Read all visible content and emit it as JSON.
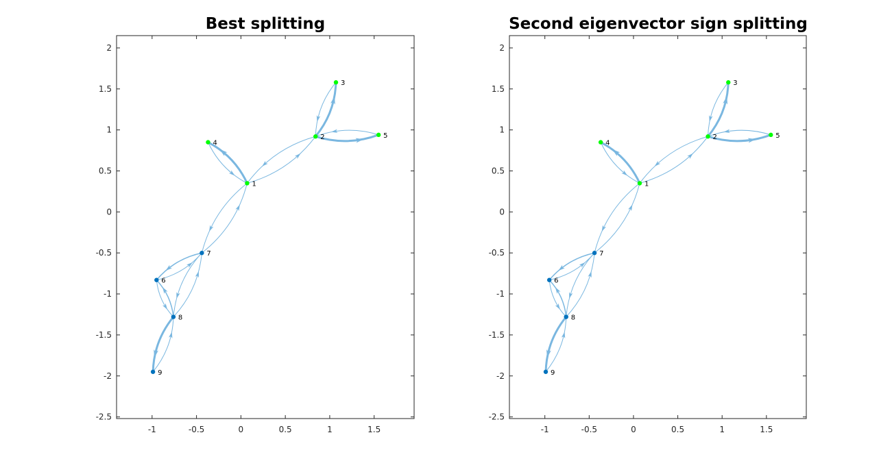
{
  "figure": {
    "background": "#ffffff"
  },
  "chart_data": [
    {
      "type": "graph",
      "title": "Best splitting",
      "xlim": [
        -1.4,
        1.95
      ],
      "ylim": [
        -2.52,
        2.15
      ],
      "xticks": [
        -1,
        -0.5,
        0,
        0.5,
        1,
        1.5
      ],
      "xtick_labels": [
        "-1",
        "-0.5",
        "0",
        "0.5",
        "1",
        "1.5"
      ],
      "yticks": [
        2,
        1.5,
        1,
        0.5,
        0,
        -0.5,
        -1,
        -1.5,
        -2,
        -2.5
      ],
      "ytick_labels": [
        "2",
        "1.5",
        "1",
        "0.5",
        "0",
        "-0.5",
        "-1",
        "-1.5",
        "-2",
        "-2.5"
      ],
      "grid": false,
      "nodes": [
        {
          "id": "1",
          "x": 0.07,
          "y": 0.35,
          "group": "green"
        },
        {
          "id": "2",
          "x": 0.84,
          "y": 0.92,
          "group": "green"
        },
        {
          "id": "3",
          "x": 1.07,
          "y": 1.58,
          "group": "green"
        },
        {
          "id": "4",
          "x": -0.37,
          "y": 0.85,
          "group": "green"
        },
        {
          "id": "5",
          "x": 1.55,
          "y": 0.94,
          "group": "green"
        },
        {
          "id": "6",
          "x": -0.95,
          "y": -0.83,
          "group": "blue"
        },
        {
          "id": "7",
          "x": -0.44,
          "y": -0.5,
          "group": "blue"
        },
        {
          "id": "8",
          "x": -0.76,
          "y": -1.28,
          "group": "blue"
        },
        {
          "id": "9",
          "x": -0.99,
          "y": -1.95,
          "group": "blue"
        }
      ],
      "edges": [
        {
          "from": "1",
          "to": "2",
          "weight": 1
        },
        {
          "from": "2",
          "to": "1",
          "weight": 1
        },
        {
          "from": "1",
          "to": "4",
          "weight": 3
        },
        {
          "from": "4",
          "to": "1",
          "weight": 1
        },
        {
          "from": "2",
          "to": "3",
          "weight": 3
        },
        {
          "from": "3",
          "to": "2",
          "weight": 1
        },
        {
          "from": "2",
          "to": "5",
          "weight": 3
        },
        {
          "from": "5",
          "to": "2",
          "weight": 1
        },
        {
          "from": "1",
          "to": "7",
          "weight": 1
        },
        {
          "from": "7",
          "to": "1",
          "weight": 1
        },
        {
          "from": "7",
          "to": "6",
          "weight": 1.5
        },
        {
          "from": "6",
          "to": "7",
          "weight": 1
        },
        {
          "from": "7",
          "to": "8",
          "weight": 1
        },
        {
          "from": "8",
          "to": "7",
          "weight": 1
        },
        {
          "from": "6",
          "to": "8",
          "weight": 1
        },
        {
          "from": "8",
          "to": "6",
          "weight": 1.5
        },
        {
          "from": "8",
          "to": "9",
          "weight": 3
        },
        {
          "from": "9",
          "to": "8",
          "weight": 1
        }
      ]
    },
    {
      "type": "graph",
      "title": "Second eigenvector sign splitting",
      "xlim": [
        -1.4,
        1.95
      ],
      "ylim": [
        -2.52,
        2.15
      ],
      "xticks": [
        -1,
        -0.5,
        0,
        0.5,
        1,
        1.5
      ],
      "xtick_labels": [
        "-1",
        "-0.5",
        "0",
        "0.5",
        "1",
        "1.5"
      ],
      "yticks": [
        2,
        1.5,
        1,
        0.5,
        0,
        -0.5,
        -1,
        -1.5,
        -2,
        -2.5
      ],
      "ytick_labels": [
        "2",
        "1.5",
        "1",
        "0.5",
        "0",
        "-0.5",
        "-1",
        "-1.5",
        "-2",
        "-2.5"
      ],
      "grid": false,
      "nodes": [
        {
          "id": "1",
          "x": 0.07,
          "y": 0.35,
          "group": "green"
        },
        {
          "id": "2",
          "x": 0.84,
          "y": 0.92,
          "group": "green"
        },
        {
          "id": "3",
          "x": 1.07,
          "y": 1.58,
          "group": "green"
        },
        {
          "id": "4",
          "x": -0.37,
          "y": 0.85,
          "group": "green"
        },
        {
          "id": "5",
          "x": 1.55,
          "y": 0.94,
          "group": "green"
        },
        {
          "id": "6",
          "x": -0.95,
          "y": -0.83,
          "group": "blue"
        },
        {
          "id": "7",
          "x": -0.44,
          "y": -0.5,
          "group": "blue"
        },
        {
          "id": "8",
          "x": -0.76,
          "y": -1.28,
          "group": "blue"
        },
        {
          "id": "9",
          "x": -0.99,
          "y": -1.95,
          "group": "blue"
        }
      ],
      "edges": [
        {
          "from": "1",
          "to": "2",
          "weight": 1
        },
        {
          "from": "2",
          "to": "1",
          "weight": 1
        },
        {
          "from": "1",
          "to": "4",
          "weight": 3
        },
        {
          "from": "4",
          "to": "1",
          "weight": 1
        },
        {
          "from": "2",
          "to": "3",
          "weight": 3
        },
        {
          "from": "3",
          "to": "2",
          "weight": 1
        },
        {
          "from": "2",
          "to": "5",
          "weight": 3
        },
        {
          "from": "5",
          "to": "2",
          "weight": 1
        },
        {
          "from": "1",
          "to": "7",
          "weight": 1
        },
        {
          "from": "7",
          "to": "1",
          "weight": 1
        },
        {
          "from": "7",
          "to": "6",
          "weight": 1.5
        },
        {
          "from": "6",
          "to": "7",
          "weight": 1
        },
        {
          "from": "7",
          "to": "8",
          "weight": 1
        },
        {
          "from": "8",
          "to": "7",
          "weight": 1
        },
        {
          "from": "6",
          "to": "8",
          "weight": 1
        },
        {
          "from": "8",
          "to": "6",
          "weight": 1.5
        },
        {
          "from": "8",
          "to": "9",
          "weight": 3
        },
        {
          "from": "9",
          "to": "8",
          "weight": 1
        }
      ]
    }
  ],
  "colors": {
    "edge": "#7ab7e0",
    "node_green": "#00ff00",
    "node_blue": "#0072bd",
    "axis": "#262626"
  }
}
